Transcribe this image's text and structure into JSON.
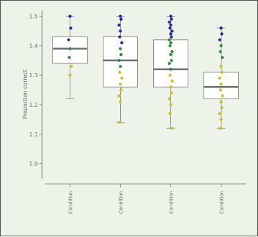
{
  "chart_data": {
    "type": "box",
    "ylabel": "Proportion correct",
    "ylim": [
      0.95,
      1.52
    ],
    "yticks": [
      "1.0",
      "1.1",
      "1.2",
      "1.3",
      "1.4",
      "1.5"
    ],
    "ytick_values": [
      1.0,
      1.1,
      1.2,
      1.3,
      1.4,
      1.5
    ],
    "categories": [
      "Condition",
      "Condition",
      "Condition",
      "Condition"
    ],
    "boxes": [
      {
        "whisker_low": 1.22,
        "q1": 1.34,
        "median": 1.39,
        "q3": 1.43,
        "whisker_high": 1.5
      },
      {
        "whisker_low": 1.14,
        "q1": 1.26,
        "median": 1.35,
        "q3": 1.43,
        "whisker_high": 1.5
      },
      {
        "whisker_low": 1.12,
        "q1": 1.26,
        "median": 1.32,
        "q3": 1.42,
        "whisker_high": 1.5
      },
      {
        "whisker_low": 1.12,
        "q1": 1.22,
        "median": 1.26,
        "q3": 1.31,
        "whisker_high": 1.46
      }
    ],
    "points": [
      [
        {
          "y": 1.5,
          "c": "#1e2aa0"
        },
        {
          "y": 1.46,
          "c": "#1e2aa0"
        },
        {
          "y": 1.42,
          "c": "#1e2aa0"
        },
        {
          "y": 1.39,
          "c": "#2e8b3a"
        },
        {
          "y": 1.36,
          "c": "#2e8b3a"
        },
        {
          "y": 1.33,
          "c": "#c8c21c"
        },
        {
          "y": 1.3,
          "c": "#c8c21c"
        }
      ],
      [
        {
          "y": 1.5,
          "c": "#1e2aa0"
        },
        {
          "y": 1.49,
          "c": "#1e2aa0"
        },
        {
          "y": 1.47,
          "c": "#1e2aa0"
        },
        {
          "y": 1.45,
          "c": "#1e2aa0"
        },
        {
          "y": 1.43,
          "c": "#1e2aa0"
        },
        {
          "y": 1.41,
          "c": "#1e2aa0"
        },
        {
          "y": 1.39,
          "c": "#2e8b3a"
        },
        {
          "y": 1.37,
          "c": "#2e8b3a"
        },
        {
          "y": 1.35,
          "c": "#2e8b3a"
        },
        {
          "y": 1.33,
          "c": "#2e8b3a"
        },
        {
          "y": 1.31,
          "c": "#c8c21c"
        },
        {
          "y": 1.29,
          "c": "#c8c21c"
        },
        {
          "y": 1.27,
          "c": "#c8c21c"
        },
        {
          "y": 1.25,
          "c": "#c8c21c"
        },
        {
          "y": 1.23,
          "c": "#c8c21c"
        },
        {
          "y": 1.21,
          "c": "#c8c21c"
        },
        {
          "y": 1.14,
          "c": "#c8c21c"
        }
      ],
      [
        {
          "y": 1.5,
          "c": "#1e2aa0"
        },
        {
          "y": 1.49,
          "c": "#1e2aa0"
        },
        {
          "y": 1.48,
          "c": "#1e2aa0"
        },
        {
          "y": 1.47,
          "c": "#1e2aa0"
        },
        {
          "y": 1.46,
          "c": "#1e2aa0"
        },
        {
          "y": 1.45,
          "c": "#1e2aa0"
        },
        {
          "y": 1.44,
          "c": "#1e2aa0"
        },
        {
          "y": 1.43,
          "c": "#1e2aa0"
        },
        {
          "y": 1.42,
          "c": "#2e8b3a"
        },
        {
          "y": 1.41,
          "c": "#2e8b3a"
        },
        {
          "y": 1.4,
          "c": "#2e8b3a"
        },
        {
          "y": 1.38,
          "c": "#2e8b3a"
        },
        {
          "y": 1.37,
          "c": "#2e8b3a"
        },
        {
          "y": 1.35,
          "c": "#2e8b3a"
        },
        {
          "y": 1.34,
          "c": "#2e8b3a"
        },
        {
          "y": 1.32,
          "c": "#2e8b3a"
        },
        {
          "y": 1.3,
          "c": "#c8c21c"
        },
        {
          "y": 1.28,
          "c": "#c8c21c"
        },
        {
          "y": 1.26,
          "c": "#c8c21c"
        },
        {
          "y": 1.24,
          "c": "#c8c21c"
        },
        {
          "y": 1.22,
          "c": "#c8c21c"
        },
        {
          "y": 1.2,
          "c": "#c8c21c"
        },
        {
          "y": 1.17,
          "c": "#c8c21c"
        },
        {
          "y": 1.12,
          "c": "#c8c21c"
        }
      ],
      [
        {
          "y": 1.46,
          "c": "#1e2aa0"
        },
        {
          "y": 1.44,
          "c": "#1e2aa0"
        },
        {
          "y": 1.42,
          "c": "#1e2aa0"
        },
        {
          "y": 1.4,
          "c": "#2e8b3a"
        },
        {
          "y": 1.38,
          "c": "#2e8b3a"
        },
        {
          "y": 1.36,
          "c": "#2e8b3a"
        },
        {
          "y": 1.33,
          "c": "#c8c21c"
        },
        {
          "y": 1.31,
          "c": "#c8c21c"
        },
        {
          "y": 1.29,
          "c": "#c8c21c"
        },
        {
          "y": 1.27,
          "c": "#c8c21c"
        },
        {
          "y": 1.25,
          "c": "#c8c21c"
        },
        {
          "y": 1.23,
          "c": "#c8c21c"
        },
        {
          "y": 1.21,
          "c": "#c8c21c"
        },
        {
          "y": 1.19,
          "c": "#c8c21c"
        },
        {
          "y": 1.17,
          "c": "#c8c21c"
        },
        {
          "y": 1.15,
          "c": "#c8c21c"
        },
        {
          "y": 1.12,
          "c": "#c8c21c"
        }
      ]
    ],
    "colors": {
      "background": "#eef3ea",
      "box_fill": "#ffffff",
      "box_stroke": "#8a8a8a",
      "median": "#6b6b6b",
      "axis": "#8a8a8a",
      "text": "#6b6b6b"
    }
  }
}
